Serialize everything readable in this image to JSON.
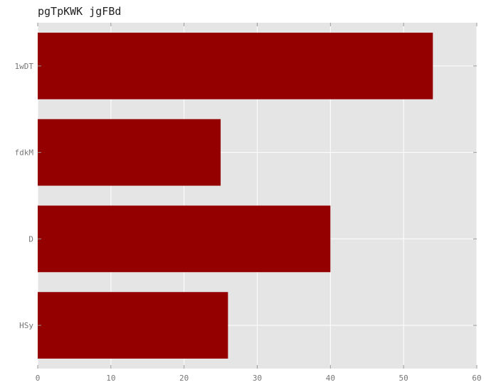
{
  "chart_data": {
    "type": "bar",
    "orientation": "horizontal",
    "title": "pgTpKWK jgFBd",
    "xlabel": "",
    "ylabel": "",
    "categories": [
      "1wDT",
      "fdkM",
      "D",
      "HSy"
    ],
    "values": [
      54,
      25,
      40,
      26
    ],
    "xlim": [
      0,
      60
    ],
    "x_ticks": [
      0,
      10,
      20,
      30,
      40,
      50,
      60
    ],
    "grid": true,
    "colors": {
      "bar": "#940000",
      "plot_background": "#e5e5e5",
      "grid": "#ffffff"
    }
  }
}
